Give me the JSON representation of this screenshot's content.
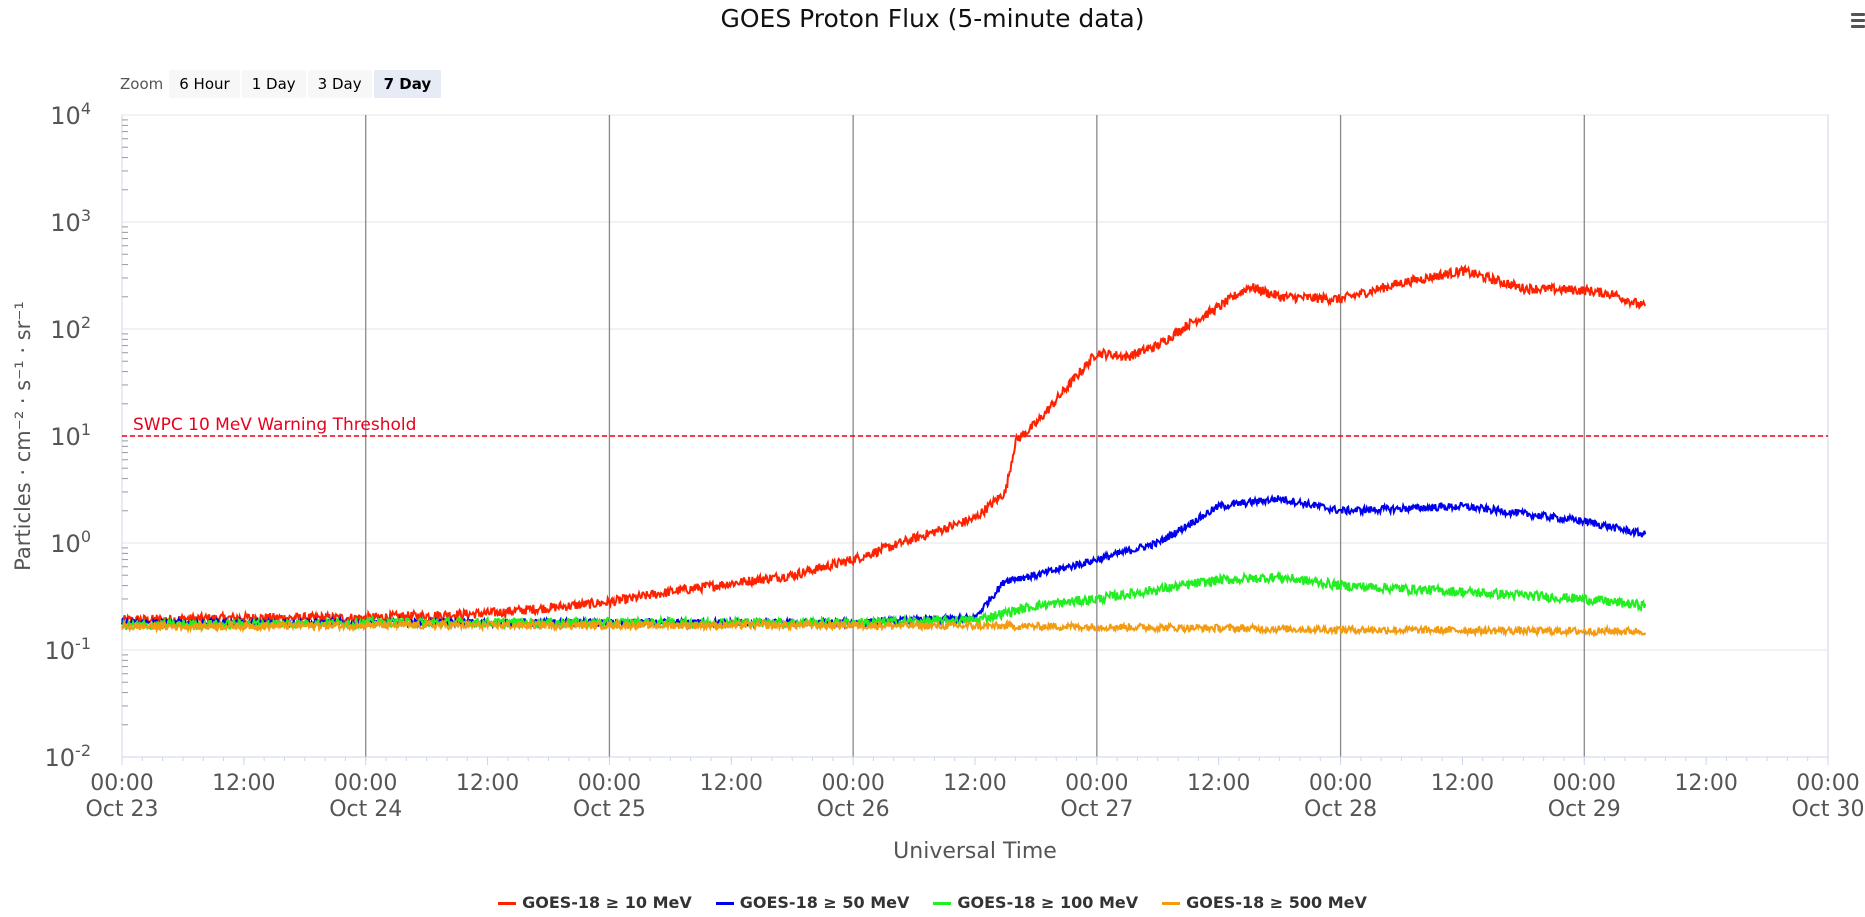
{
  "title": "GOES Proton Flux (5-minute data)",
  "zoom": {
    "label": "Zoom",
    "buttons": [
      "6 Hour",
      "1 Day",
      "3 Day",
      "7 Day"
    ],
    "selected": "7 Day"
  },
  "chart_data": {
    "type": "line",
    "title": "GOES Proton Flux (5-minute data)",
    "xlabel": "Universal Time",
    "ylabel": "Particles · cm⁻² · s⁻¹ · sr⁻¹",
    "y_scale": "log",
    "ylim": [
      0.01,
      10000
    ],
    "y_ticks": [
      {
        "base": "10",
        "exp": "-2",
        "value": 0.01
      },
      {
        "base": "10",
        "exp": "-1",
        "value": 0.1
      },
      {
        "base": "10",
        "exp": "0",
        "value": 1
      },
      {
        "base": "10",
        "exp": "1",
        "value": 10
      },
      {
        "base": "10",
        "exp": "2",
        "value": 100
      },
      {
        "base": "10",
        "exp": "3",
        "value": 1000
      },
      {
        "base": "10",
        "exp": "4",
        "value": 10000
      }
    ],
    "xlim": [
      "Oct 23 00:00",
      "Oct 30 00:00"
    ],
    "x_ticks": [
      {
        "time": "00:00",
        "date": "Oct 23",
        "day": 0
      },
      {
        "time": "12:00",
        "date": "",
        "day": 0.5
      },
      {
        "time": "00:00",
        "date": "Oct 24",
        "day": 1
      },
      {
        "time": "12:00",
        "date": "",
        "day": 1.5
      },
      {
        "time": "00:00",
        "date": "Oct 25",
        "day": 2
      },
      {
        "time": "12:00",
        "date": "",
        "day": 2.5
      },
      {
        "time": "00:00",
        "date": "Oct 26",
        "day": 3
      },
      {
        "time": "12:00",
        "date": "",
        "day": 3.5
      },
      {
        "time": "00:00",
        "date": "Oct 27",
        "day": 4
      },
      {
        "time": "12:00",
        "date": "",
        "day": 4.5
      },
      {
        "time": "00:00",
        "date": "Oct 28",
        "day": 5
      },
      {
        "time": "12:00",
        "date": "",
        "day": 5.5
      },
      {
        "time": "00:00",
        "date": "Oct 29",
        "day": 6
      },
      {
        "time": "12:00",
        "date": "",
        "day": 6.5
      },
      {
        "time": "00:00",
        "date": "Oct 30",
        "day": 7
      }
    ],
    "vertical_gridlines": "daily at 00:00",
    "threshold": {
      "label": "SWPC 10 MeV Warning Threshold",
      "value": 10,
      "color": "#e8001c"
    },
    "series": [
      {
        "name": "GOES-18 ≥ 10 MeV",
        "color": "#ff2200",
        "x": [
          "Oct 23 00:00",
          "Oct 23 12:00",
          "Oct 24 00:00",
          "Oct 24 12:00",
          "Oct 25 00:00",
          "Oct 25 06:00",
          "Oct 25 12:00",
          "Oct 25 18:00",
          "Oct 26 00:00",
          "Oct 26 06:00",
          "Oct 26 12:00",
          "Oct 26 15:00",
          "Oct 26 16:00",
          "Oct 26 18:00",
          "Oct 26 21:00",
          "Oct 27 00:00",
          "Oct 27 03:00",
          "Oct 27 06:00",
          "Oct 27 09:00",
          "Oct 27 12:00",
          "Oct 27 15:00",
          "Oct 27 18:00",
          "Oct 28 00:00",
          "Oct 28 06:00",
          "Oct 28 12:00",
          "Oct 28 18:00",
          "Oct 29 00:00",
          "Oct 29 03:00",
          "Oct 29 06:00"
        ],
        "y": [
          0.19,
          0.2,
          0.2,
          0.22,
          0.28,
          0.35,
          0.42,
          0.5,
          0.7,
          1.1,
          1.7,
          3,
          9,
          13,
          28,
          60,
          55,
          70,
          110,
          160,
          250,
          200,
          190,
          270,
          350,
          240,
          230,
          210,
          160
        ]
      },
      {
        "name": "GOES-18 ≥ 50 MeV",
        "color": "#0000ee",
        "x": [
          "Oct 23 00:00",
          "Oct 24 00:00",
          "Oct 25 00:00",
          "Oct 26 00:00",
          "Oct 26 12:00",
          "Oct 26 15:00",
          "Oct 26 18:00",
          "Oct 27 00:00",
          "Oct 27 06:00",
          "Oct 27 12:00",
          "Oct 27 18:00",
          "Oct 28 00:00",
          "Oct 28 12:00",
          "Oct 29 00:00",
          "Oct 29 06:00"
        ],
        "y": [
          0.18,
          0.18,
          0.18,
          0.18,
          0.2,
          0.45,
          0.5,
          0.7,
          1.0,
          2.2,
          2.6,
          2.0,
          2.2,
          1.6,
          1.2
        ]
      },
      {
        "name": "GOES-18 ≥ 100 MeV",
        "color": "#22ee22",
        "x": [
          "Oct 23 00:00",
          "Oct 24 00:00",
          "Oct 25 00:00",
          "Oct 26 00:00",
          "Oct 26 12:00",
          "Oct 26 18:00",
          "Oct 27 00:00",
          "Oct 27 12:00",
          "Oct 27 18:00",
          "Oct 28 00:00",
          "Oct 28 12:00",
          "Oct 29 00:00",
          "Oct 29 06:00"
        ],
        "y": [
          0.17,
          0.18,
          0.18,
          0.18,
          0.19,
          0.26,
          0.3,
          0.45,
          0.48,
          0.4,
          0.35,
          0.3,
          0.26
        ]
      },
      {
        "name": "GOES-18 ≥ 500 MeV",
        "color": "#f39c12",
        "x": [
          "Oct 23 00:00",
          "Oct 24 00:00",
          "Oct 25 00:00",
          "Oct 26 00:00",
          "Oct 27 00:00",
          "Oct 28 00:00",
          "Oct 29 00:00",
          "Oct 29 06:00"
        ],
        "y": [
          0.165,
          0.17,
          0.17,
          0.17,
          0.165,
          0.155,
          0.15,
          0.15
        ]
      }
    ]
  }
}
